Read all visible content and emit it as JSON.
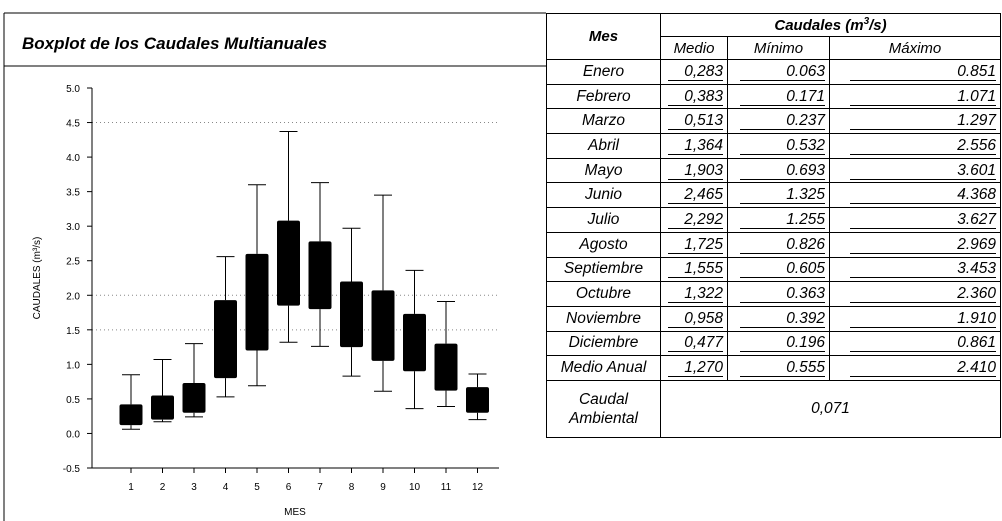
{
  "title": "Boxplot de los Caudales Multianuales",
  "table": {
    "mes_header": "Mes",
    "group_header_pre": "Caudales (m",
    "group_header_sup": "3",
    "group_header_post": "/s)",
    "columns": [
      "Medio",
      "Mínimo",
      "Máximo"
    ],
    "rows": [
      {
        "mes": "Enero",
        "medio": "0,283",
        "minimo": "0.063",
        "maximo": "0.851"
      },
      {
        "mes": "Febrero",
        "medio": "0,383",
        "minimo": "0.171",
        "maximo": "1.071"
      },
      {
        "mes": "Marzo",
        "medio": "0,513",
        "minimo": "0.237",
        "maximo": "1.297"
      },
      {
        "mes": "Abril",
        "medio": "1,364",
        "minimo": "0.532",
        "maximo": "2.556"
      },
      {
        "mes": "Mayo",
        "medio": "1,903",
        "minimo": "0.693",
        "maximo": "3.601"
      },
      {
        "mes": "Junio",
        "medio": "2,465",
        "minimo": "1.325",
        "maximo": "4.368"
      },
      {
        "mes": "Julio",
        "medio": "2,292",
        "minimo": "1.255",
        "maximo": "3.627"
      },
      {
        "mes": "Agosto",
        "medio": "1,725",
        "minimo": "0.826",
        "maximo": "2.969"
      },
      {
        "mes": "Septiembre",
        "medio": "1,555",
        "minimo": "0.605",
        "maximo": "3.453"
      },
      {
        "mes": "Octubre",
        "medio": "1,322",
        "minimo": "0.363",
        "maximo": "2.360"
      },
      {
        "mes": "Noviembre",
        "medio": "0,958",
        "minimo": "0.392",
        "maximo": "1.910"
      },
      {
        "mes": "Diciembre",
        "medio": "0,477",
        "minimo": "0.196",
        "maximo": "0.861"
      },
      {
        "mes": "Medio Anual",
        "medio": "1,270",
        "minimo": "0.555",
        "maximo": "2.410"
      }
    ],
    "ambiental_label_1": "Caudal",
    "ambiental_label_2": "Ambiental",
    "ambiental_value": "0,071"
  },
  "chart_data": {
    "type": "boxplot",
    "categories": [
      "1",
      "2",
      "3",
      "4",
      "5",
      "6",
      "7",
      "8",
      "9",
      "10",
      "11",
      "12"
    ],
    "boxes": [
      {
        "min": 0.06,
        "q1": 0.12,
        "q3": 0.42,
        "max": 0.85
      },
      {
        "min": 0.17,
        "q1": 0.2,
        "q3": 0.55,
        "max": 1.07
      },
      {
        "min": 0.24,
        "q1": 0.3,
        "q3": 0.73,
        "max": 1.3
      },
      {
        "min": 0.53,
        "q1": 0.8,
        "q3": 1.93,
        "max": 2.56
      },
      {
        "min": 0.69,
        "q1": 1.2,
        "q3": 2.6,
        "max": 3.6
      },
      {
        "min": 1.32,
        "q1": 1.85,
        "q3": 3.08,
        "max": 4.37
      },
      {
        "min": 1.26,
        "q1": 1.8,
        "q3": 2.78,
        "max": 3.63
      },
      {
        "min": 0.83,
        "q1": 1.25,
        "q3": 2.2,
        "max": 2.97
      },
      {
        "min": 0.61,
        "q1": 1.05,
        "q3": 2.07,
        "max": 3.45
      },
      {
        "min": 0.36,
        "q1": 0.9,
        "q3": 1.73,
        "max": 2.36
      },
      {
        "min": 0.39,
        "q1": 0.62,
        "q3": 1.3,
        "max": 1.91
      },
      {
        "min": 0.2,
        "q1": 0.3,
        "q3": 0.67,
        "max": 0.86
      }
    ],
    "ylabel": "CAUDALES (m³/s)",
    "xlabel": "MES",
    "ylim": [
      -0.5,
      5.0
    ],
    "yticks": [
      "5.0",
      "4.5",
      "4.0",
      "3.5",
      "3.0",
      "2.5",
      "2.0",
      "1.5",
      "1.0",
      "0.5",
      "0.0",
      "-0.5"
    ],
    "ytick_values": [
      5.0,
      4.5,
      4.0,
      3.5,
      3.0,
      2.5,
      2.0,
      1.5,
      1.0,
      0.5,
      0.0,
      -0.5
    ],
    "reference_lines": [
      4.5,
      2.0,
      1.5
    ],
    "box_color": "#000000"
  }
}
